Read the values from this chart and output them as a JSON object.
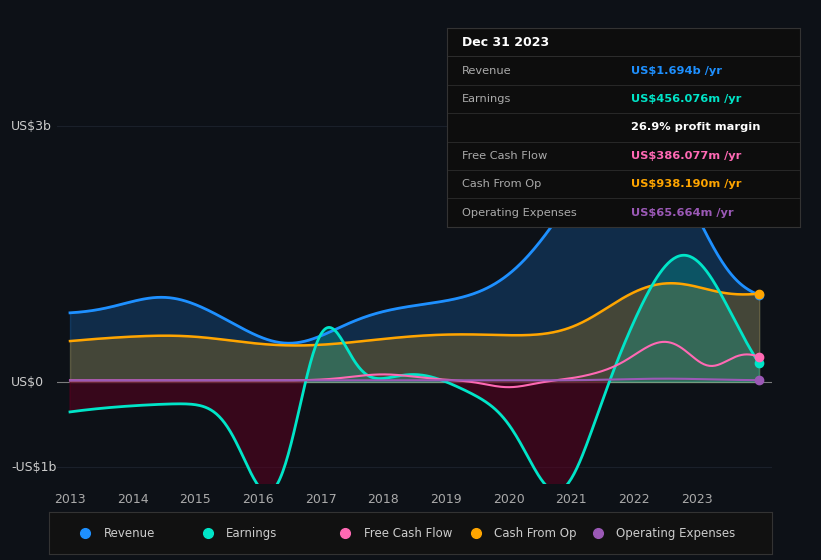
{
  "bg_color": "#0d1117",
  "plot_bg_color": "#0d1117",
  "ylabel_top": "US$3b",
  "ylabel_zero": "US$0",
  "ylabel_bottom": "-US$1b",
  "colors": {
    "revenue": "#1e90ff",
    "earnings": "#00e5c8",
    "free_cash_flow": "#ff69b4",
    "cash_from_op": "#ffa500",
    "operating_expenses": "#9b59b6"
  },
  "neg_fill_color": "#5a0020",
  "info_box_bg": "#0d0d0d",
  "info_box_sep_color": "#333333",
  "info_rows": [
    {
      "label": "Dec 31 2023",
      "value": null,
      "value_color": null,
      "is_header": true
    },
    {
      "label": "Revenue",
      "value": "US$1.694b /yr",
      "value_color": "#1e90ff",
      "is_header": false
    },
    {
      "label": "Earnings",
      "value": "US$456.076m /yr",
      "value_color": "#00e5c8",
      "is_header": false
    },
    {
      "label": "",
      "value": "26.9% profit margin",
      "value_color": "#ffffff",
      "is_header": false
    },
    {
      "label": "Free Cash Flow",
      "value": "US$386.077m /yr",
      "value_color": "#ff69b4",
      "is_header": false
    },
    {
      "label": "Cash From Op",
      "value": "US$938.190m /yr",
      "value_color": "#ffa500",
      "is_header": false
    },
    {
      "label": "Operating Expenses",
      "value": "US$65.664m /yr",
      "value_color": "#9b59b6",
      "is_header": false
    }
  ],
  "ylim": [
    -1.2,
    3.2
  ],
  "xlim": [
    2012.8,
    2024.2
  ],
  "xtick_years": [
    2013,
    2014,
    2015,
    2016,
    2017,
    2018,
    2019,
    2020,
    2021,
    2022,
    2023
  ],
  "legend": [
    {
      "label": "Revenue",
      "color": "#1e90ff"
    },
    {
      "label": "Earnings",
      "color": "#00e5c8"
    },
    {
      "label": "Free Cash Flow",
      "color": "#ff69b4"
    },
    {
      "label": "Cash From Op",
      "color": "#ffa500"
    },
    {
      "label": "Operating Expenses",
      "color": "#9b59b6"
    }
  ],
  "grid_color": "#1e2530",
  "zero_line_color": "#aaaaaa",
  "tick_color": "#aaaaaa",
  "ylabel_color": "#cccccc",
  "legend_bg": "#111111",
  "legend_border_color": "#333333"
}
